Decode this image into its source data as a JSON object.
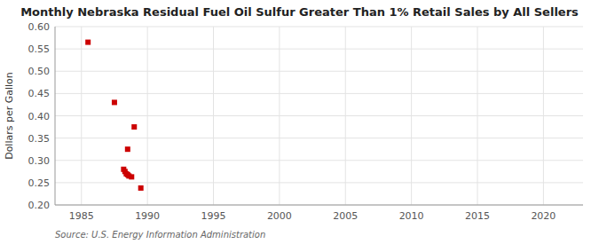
{
  "chart_data": {
    "type": "scatter",
    "title": "Monthly Nebraska Residual Fuel Oil Sulfur Greater Than 1% Retail Sales by All Sellers",
    "y_label": "Dollars per Gallon",
    "annotations": [
      "Source: U.S. Energy Information Administration"
    ],
    "x": [
      1985.5,
      1987.5,
      1988.5,
      1989.0,
      1988.2,
      1988.3,
      1988.4,
      1988.5,
      1988.6,
      1988.8,
      1989.5
    ],
    "values": [
      0.565,
      0.43,
      0.325,
      0.375,
      0.28,
      0.275,
      0.27,
      0.268,
      0.265,
      0.263,
      0.238
    ],
    "color": "#cc0000",
    "marker": "square",
    "xlim": [
      1983,
      2023
    ],
    "ylim": [
      0.2,
      0.6
    ],
    "xticks": [
      1985,
      1990,
      1995,
      2000,
      2005,
      2010,
      2015,
      2020
    ],
    "yticks": [
      {
        "value": 0.2,
        "label": "0.20"
      },
      0.25,
      {
        "value": 0.3,
        "label": "0.30"
      },
      0.35,
      {
        "value": 0.4,
        "label": "0.40"
      },
      0.45,
      {
        "value": 0.5,
        "label": "0.50"
      },
      0.55,
      {
        "value": 0.6,
        "label": "0.60"
      }
    ],
    "grid": true
  }
}
